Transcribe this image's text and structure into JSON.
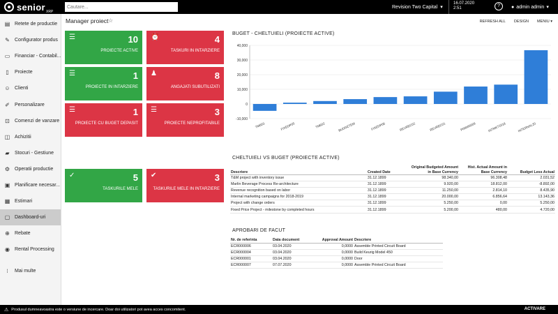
{
  "app": {
    "brand": "senior",
    "brand_sub": "XRP"
  },
  "header": {
    "search_placeholder": "Cautare...",
    "company": "Revision Two Capital",
    "date": "16.07.2020",
    "time": "2:51",
    "help": "?",
    "user": "admin admin"
  },
  "sidebar": {
    "items": [
      {
        "label": "Retete de productie",
        "icon": "book-icon"
      },
      {
        "label": "Configurator produs",
        "icon": "wrench-icon"
      },
      {
        "label": "Financiar - Contabil...",
        "icon": "folder-icon"
      },
      {
        "label": "Proiecte",
        "icon": "document-icon"
      },
      {
        "label": "Clienti",
        "icon": "user-plus-icon"
      },
      {
        "label": "Personalizare",
        "icon": "edit-icon"
      },
      {
        "label": "Comenzi de vanzare",
        "icon": "cart-icon"
      },
      {
        "label": "Achizitii",
        "icon": "shopping-bag-icon"
      },
      {
        "label": "Stocuri - Gestiune",
        "icon": "truck-icon"
      },
      {
        "label": "Operatii productie",
        "icon": "cog-icon"
      },
      {
        "label": "Planificare necesar...",
        "icon": "box-icon"
      },
      {
        "label": "Estimari",
        "icon": "calculator-icon"
      },
      {
        "label": "Dashboard-uri",
        "icon": "dashboard-icon"
      },
      {
        "label": "Rebate",
        "icon": "add-circle-icon"
      },
      {
        "label": "Rental Processing",
        "icon": "rental-icon"
      },
      {
        "label": "Mai multe",
        "icon": "grid-icon"
      }
    ],
    "active": "Dashboard-uri"
  },
  "page": {
    "title": "Manager proiect",
    "refresh": "REFRESH ALL",
    "design": "DESIGN",
    "menu": "MENIU"
  },
  "tiles": [
    {
      "number": "10",
      "label": "PROIECTE ACTIVE",
      "color": "green",
      "icon": "project-icon"
    },
    {
      "number": "4",
      "label": "TASKURI IN INTARZIERE",
      "color": "red",
      "icon": "alarm-clock-icon"
    },
    {
      "number": "1",
      "label": "PROIECTE IN INTARZIERE",
      "color": "green",
      "icon": "project-icon"
    },
    {
      "number": "8",
      "label": "ANGAJATI SUBUTILIZATI",
      "color": "red",
      "icon": "user-icon"
    },
    {
      "number": "1",
      "label": "PROIECTE CU BUGET DEPASIT",
      "color": "red",
      "icon": "project-icon"
    },
    {
      "number": "3",
      "label": "PROIECTE NEPROFITABILE",
      "color": "red",
      "icon": "project-icon"
    },
    {
      "number": "5",
      "label": "TASKURILE MELE",
      "color": "green",
      "icon": "checkmark-icon"
    },
    {
      "number": "3",
      "label": "TASKURILE MELE IN INTARZIERE",
      "color": "red",
      "icon": "check-circle-icon"
    }
  ],
  "chart_title": "BUGET - CHELTUIELI (PROIECTE ACTIVE)",
  "chart_data": {
    "type": "bar",
    "title": "BUGET - CHELTUIELI (PROIECTE ACTIVE)",
    "categories": [
      "TM603",
      "FIXEDP05",
      "TM602",
      "BUDGETEM",
      "FIXEDP06",
      "REVREC02",
      "REVREC01",
      "P00000009",
      "INTMKT2018",
      "INTERNAL20"
    ],
    "values": [
      -4700,
      900,
      2000,
      3300,
      4700,
      5200,
      8400,
      11900,
      13200,
      36700
    ],
    "ylim": [
      -10000,
      40000
    ],
    "yticks": [
      -10000,
      0,
      10000,
      20000,
      30000,
      40000
    ],
    "ytick_labels": [
      "-10,000",
      "0",
      "10,000",
      "20,000",
      "30,000",
      "40,000"
    ],
    "grid": true,
    "color": "#2f7ed8"
  },
  "table1": {
    "title": "CHELTUIELI VS BUGET (PROIECTE ACTIVE)",
    "headers": [
      "Descriere",
      "Created Date",
      "Original Budgeted Amount in Base Currency",
      "Hist. Actual Amount in Base Currency",
      "Budget Less Actual"
    ],
    "rows": [
      [
        "T&M project with inventory issue",
        "31.12.1899",
        "98.340,00",
        "96.308,48",
        "2.031,52"
      ],
      [
        "Marlin Beverage Process Re-architecture",
        "31.12.1899",
        "9.920,00",
        "18.812,00",
        "-8.892,00"
      ],
      [
        "Revenue recognition based on labor",
        "31.12.1899",
        "11.250,00",
        "2.814,10",
        "8.435,90"
      ],
      [
        "Internal marketing campaigns for 2018-2019",
        "31.12.1899",
        "20.000,00",
        "6.856,64",
        "13.143,36"
      ],
      [
        "Project with change orders",
        "31.12.1899",
        "5.250,00",
        "0,00",
        "5.250,00"
      ],
      [
        "Fixed Price Project - milestone by completed hours",
        "31.12.1899",
        "5.200,00",
        "480,00",
        "4.720,00"
      ]
    ]
  },
  "table2": {
    "title": "APROBARI DE FACUT",
    "headers": [
      "Nr. de referinta",
      "Data document",
      "Approval Amount",
      "Descriere"
    ],
    "rows": [
      [
        "ECR000006",
        "03.04.2020",
        "0,0000",
        "Assemble Printed Circuit Board"
      ],
      [
        "ECR000004",
        "03.04.2020",
        "0,0000",
        "Build Keurig Model 450"
      ],
      [
        "ECR000001",
        "03.04.2020",
        "0,0000",
        "Door"
      ],
      [
        "ECR000007",
        "07.07.2020",
        "0,0000",
        "Assemble Printed Circuit Board"
      ]
    ]
  },
  "footer": {
    "message": "Produsul dumneavoastra este o versiune de incercare. Doar doi utilizatori pot avea acces concomitent.",
    "action": "ACTIVARE"
  }
}
